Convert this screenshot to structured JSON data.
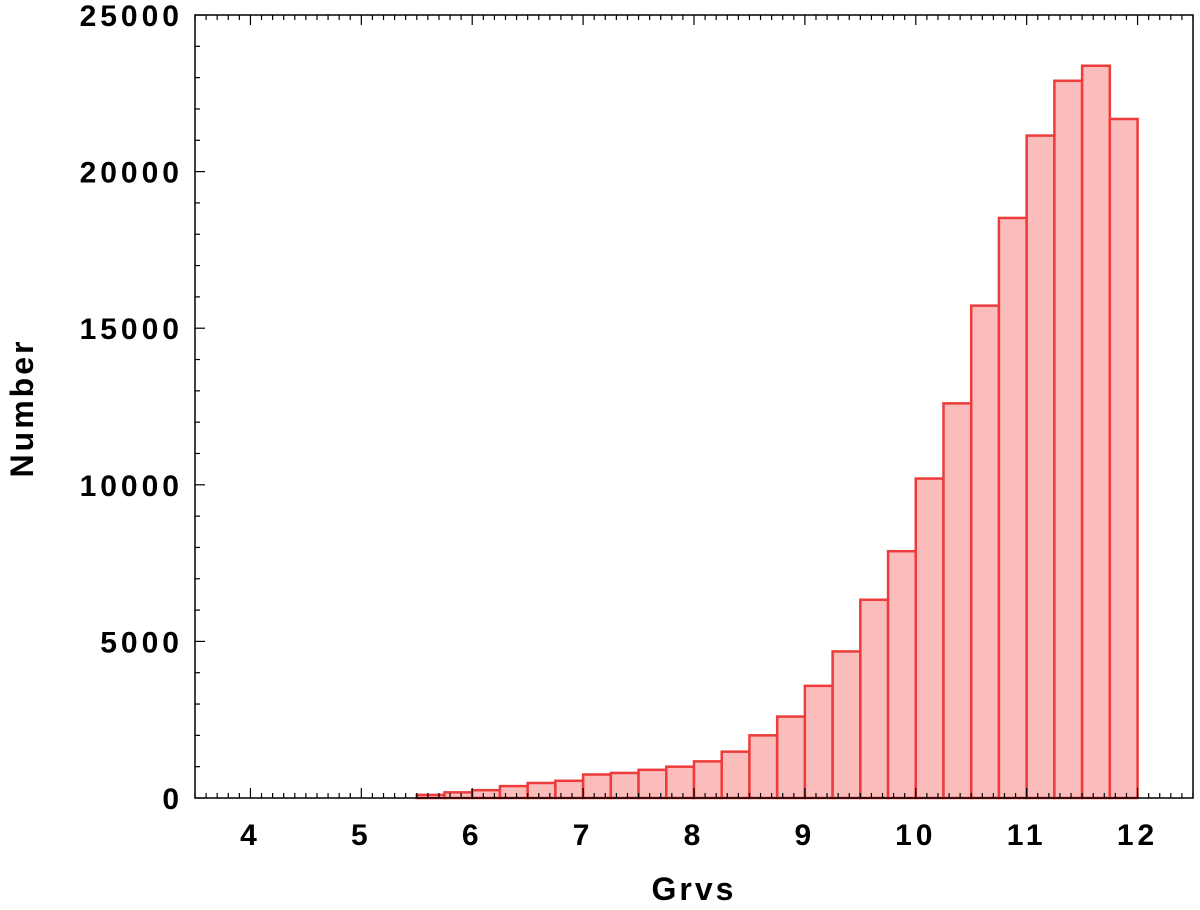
{
  "chart_data": {
    "type": "bar",
    "xlabel": "Grvs",
    "ylabel": "Number",
    "xlim": [
      3.5,
      12.5
    ],
    "ylim": [
      0,
      25000
    ],
    "xticks": [
      "4",
      "5",
      "6",
      "7",
      "8",
      "9",
      "10",
      "11",
      "12"
    ],
    "yticks": [
      "0",
      "5000",
      "10000",
      "15000",
      "20000",
      "25000"
    ],
    "bin_width": 0.25,
    "bins": [
      {
        "x0": 5.5,
        "value": 100
      },
      {
        "x0": 5.75,
        "value": 180
      },
      {
        "x0": 6.0,
        "value": 250
      },
      {
        "x0": 6.25,
        "value": 380
      },
      {
        "x0": 6.5,
        "value": 480
      },
      {
        "x0": 6.75,
        "value": 550
      },
      {
        "x0": 7.0,
        "value": 750
      },
      {
        "x0": 7.25,
        "value": 800
      },
      {
        "x0": 7.5,
        "value": 900
      },
      {
        "x0": 7.75,
        "value": 1000
      },
      {
        "x0": 8.0,
        "value": 1170
      },
      {
        "x0": 8.25,
        "value": 1480
      },
      {
        "x0": 8.5,
        "value": 2000
      },
      {
        "x0": 8.75,
        "value": 2600
      },
      {
        "x0": 9.0,
        "value": 3580
      },
      {
        "x0": 9.25,
        "value": 4680
      },
      {
        "x0": 9.5,
        "value": 6330
      },
      {
        "x0": 9.75,
        "value": 7880
      },
      {
        "x0": 10.0,
        "value": 10200
      },
      {
        "x0": 10.25,
        "value": 12600
      },
      {
        "x0": 10.5,
        "value": 15720
      },
      {
        "x0": 10.75,
        "value": 18520
      },
      {
        "x0": 11.0,
        "value": 21150
      },
      {
        "x0": 11.25,
        "value": 22900
      },
      {
        "x0": 11.5,
        "value": 23380
      },
      {
        "x0": 11.75,
        "value": 21680
      }
    ],
    "grid": false,
    "colors": {
      "bar_fill": "#fbbcbc",
      "bar_edge": "#ee3b3b"
    }
  }
}
